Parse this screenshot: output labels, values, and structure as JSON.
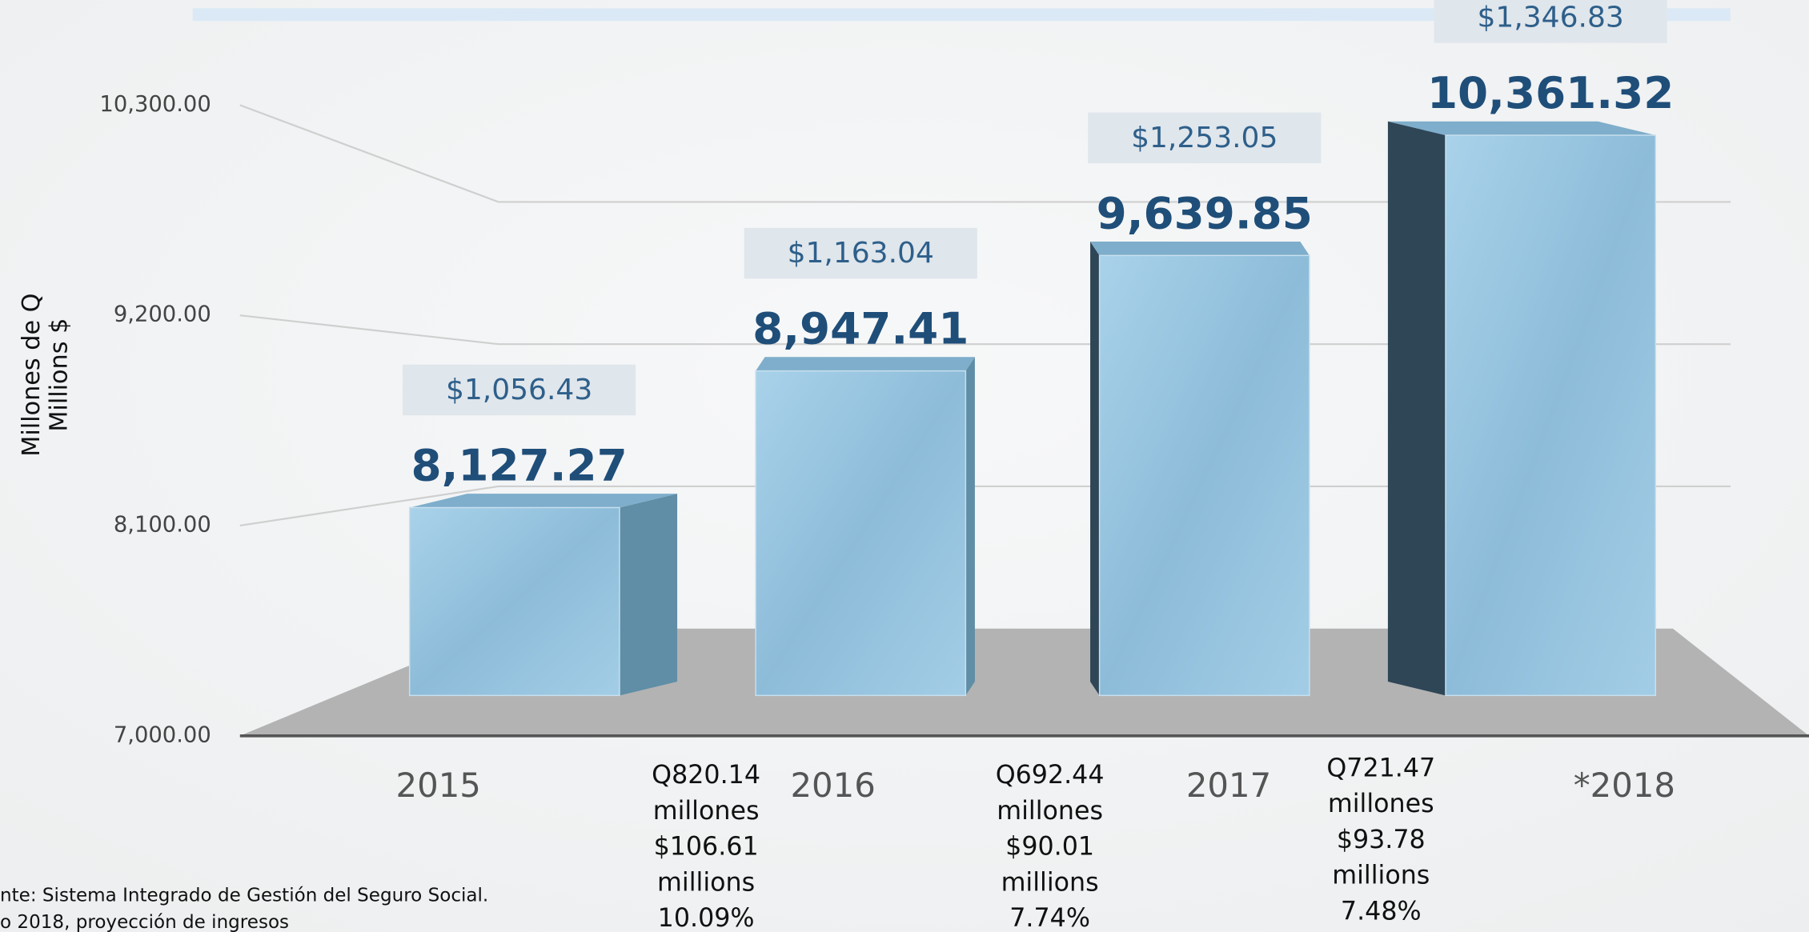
{
  "chart_data": {
    "type": "bar",
    "y_axis_label": [
      "Millones de Q",
      "Millions $"
    ],
    "categories": [
      "2015",
      "2016",
      "2017",
      "*2018"
    ],
    "values": [
      8127.27,
      8947.41,
      9639.85,
      10361.32
    ],
    "value_labels": [
      "8,127.27",
      "8,947.41",
      "9,639.85",
      "10,361.32"
    ],
    "usd_labels": [
      "$1,056.43",
      "$1,163.04",
      "$1,253.05",
      "$1,346.83"
    ],
    "color": "#94c3de",
    "ylim": [
      7000,
      10300
    ],
    "yticks": [
      {
        "value": 7000,
        "label": "7,000.00"
      },
      {
        "value": 8100,
        "label": "8,100.00"
      },
      {
        "value": 9200,
        "label": "9,200.00"
      },
      {
        "value": 10300,
        "label": "10,300.00"
      }
    ],
    "grid": true,
    "growth": [
      [
        "Q820.14",
        "millones",
        "$106.61",
        "millions",
        "10.09%"
      ],
      [
        "Q692.44",
        "millones",
        "$90.01",
        "millions",
        "7.74%"
      ],
      [
        "Q721.47",
        "millones",
        "$93.78",
        "millions",
        "7.48%"
      ]
    ],
    "source": [
      "nte: Sistema Integrado de Gestión del Seguro Social.",
      "o 2018, proyección de ingresos"
    ]
  }
}
